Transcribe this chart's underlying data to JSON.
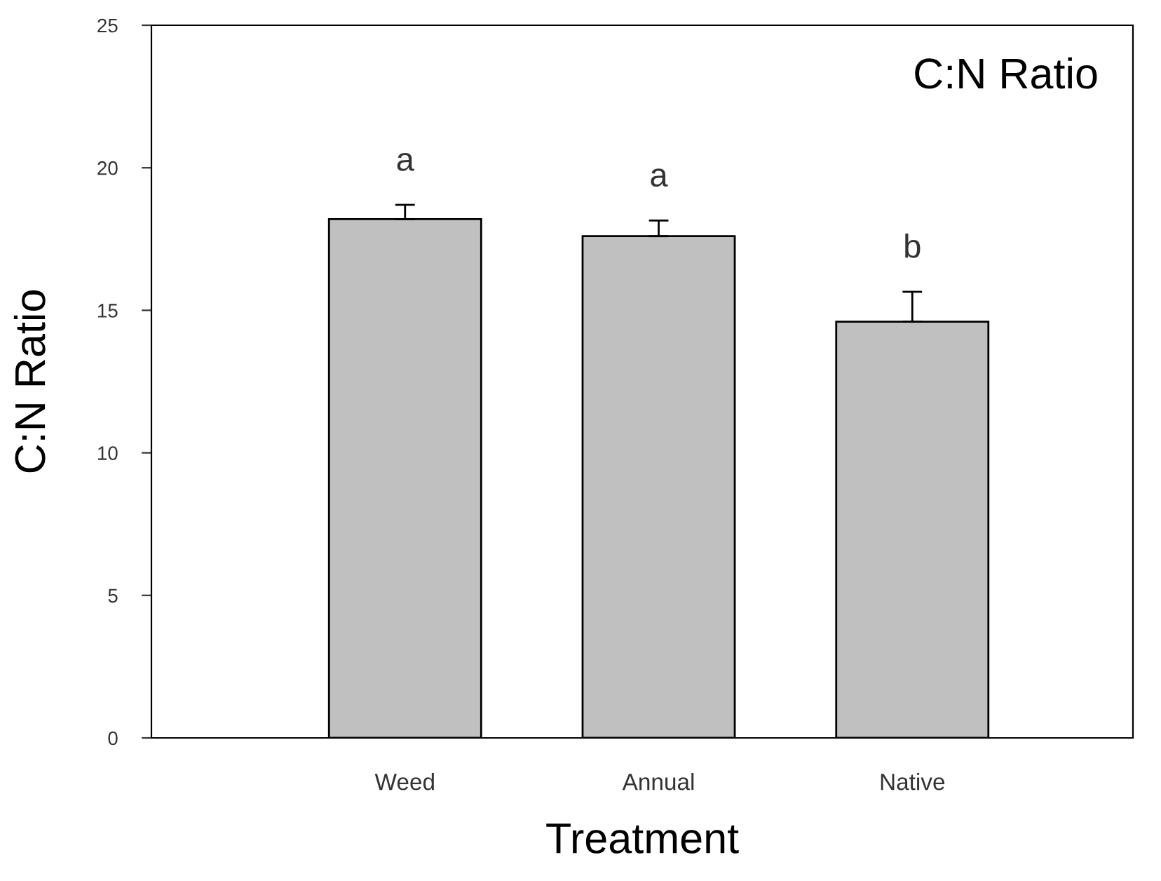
{
  "chart_data": {
    "type": "bar",
    "title": "C:N Ratio",
    "xlabel": "Treatment",
    "ylabel": "C:N Ratio",
    "categories": [
      "Weed",
      "Annual",
      "Native"
    ],
    "values": [
      18.2,
      17.6,
      14.6
    ],
    "errors": [
      [
        18.2,
        18.7
      ],
      [
        17.6,
        18.15
      ],
      [
        14.6,
        15.65
      ]
    ],
    "color": "#c0c0c0",
    "ylim": [
      0,
      25
    ],
    "yticks": [
      0,
      5,
      10,
      15,
      20,
      25
    ],
    "grid": false,
    "annotations": [
      "a",
      "a",
      "b"
    ]
  }
}
